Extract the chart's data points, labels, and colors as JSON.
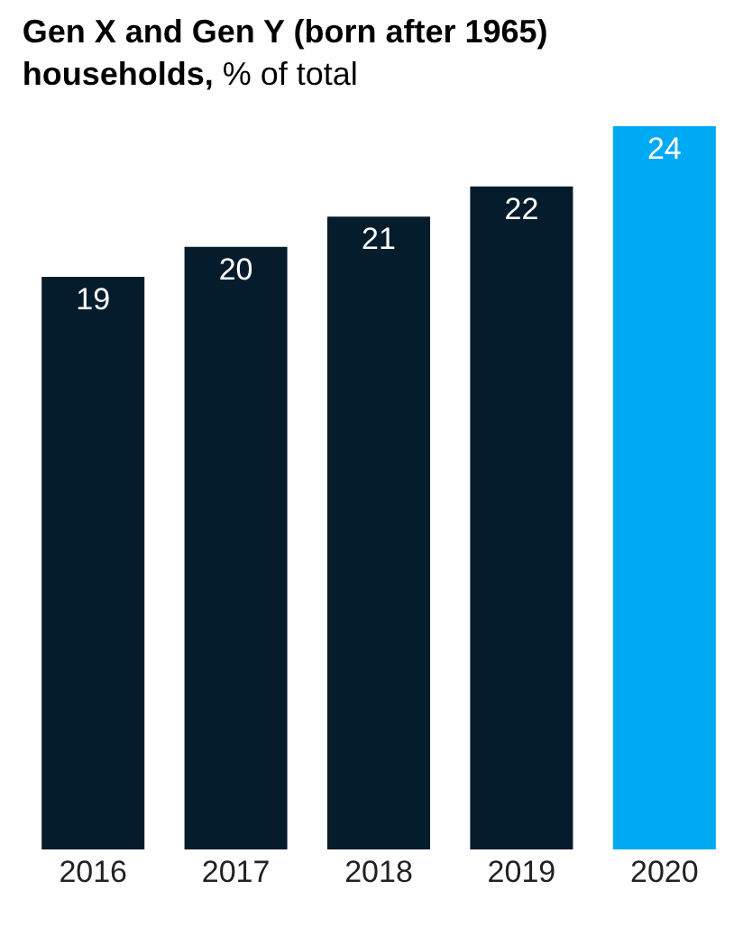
{
  "chart_data": {
    "type": "bar",
    "title": "Gen X and Gen Y (born after 1965) households,",
    "subtitle": "% of total",
    "categories": [
      "2016",
      "2017",
      "2018",
      "2019",
      "2020"
    ],
    "values": [
      19,
      20,
      21,
      22,
      24
    ],
    "colors": [
      "#051c2c",
      "#051c2c",
      "#051c2c",
      "#051c2c",
      "#00a9f4"
    ],
    "data_labels": true
  }
}
